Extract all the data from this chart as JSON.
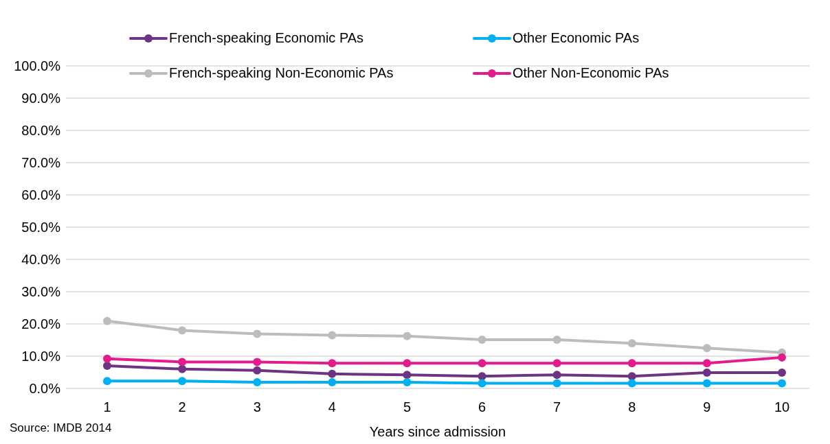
{
  "chart_data": {
    "type": "line",
    "xlabel": "Years since admission",
    "annotations": [
      "Source: IMDB 2014"
    ],
    "categories": [
      "1",
      "2",
      "3",
      "4",
      "5",
      "6",
      "7",
      "8",
      "9",
      "10"
    ],
    "series": [
      {
        "name": "French-speaking Economic PAs",
        "color": "#6c3483",
        "values": [
          7.0,
          6.0,
          5.6,
          4.5,
          4.2,
          3.8,
          4.2,
          3.8,
          4.9,
          4.9
        ]
      },
      {
        "name": "Other Economic PAs",
        "color": "#00b0f0",
        "values": [
          2.3,
          2.3,
          1.9,
          1.9,
          1.9,
          1.6,
          1.6,
          1.6,
          1.6,
          1.6
        ]
      },
      {
        "name": "French-speaking Non-Economic PAs",
        "color": "#bcbcbc",
        "values": [
          20.9,
          18.0,
          16.9,
          16.5,
          16.2,
          15.1,
          15.1,
          14.0,
          12.5,
          11.1
        ]
      },
      {
        "name": "Other Non-Economic PAs",
        "color": "#e31c8c",
        "values": [
          9.2,
          8.2,
          8.2,
          7.8,
          7.8,
          7.8,
          7.8,
          7.8,
          7.8,
          9.6
        ]
      }
    ],
    "ylim": [
      0,
      100
    ],
    "yticks": [
      {
        "value": 0,
        "label": "0.0%"
      },
      {
        "value": 10,
        "label": "10.0%"
      },
      {
        "value": 20,
        "label": "20.0%"
      },
      {
        "value": 30,
        "label": "30.0%"
      },
      {
        "value": 40,
        "label": "40.0%"
      },
      {
        "value": 50,
        "label": "50.0%"
      },
      {
        "value": 60,
        "label": "60.0%"
      },
      {
        "value": 70,
        "label": "70.0%"
      },
      {
        "value": 80,
        "label": "80.0%"
      },
      {
        "value": 90,
        "label": "90.0%"
      },
      {
        "value": 100,
        "label": "100.0%"
      }
    ],
    "grid": "y",
    "legend": "top",
    "marker": "circle",
    "line_style": "solid"
  }
}
